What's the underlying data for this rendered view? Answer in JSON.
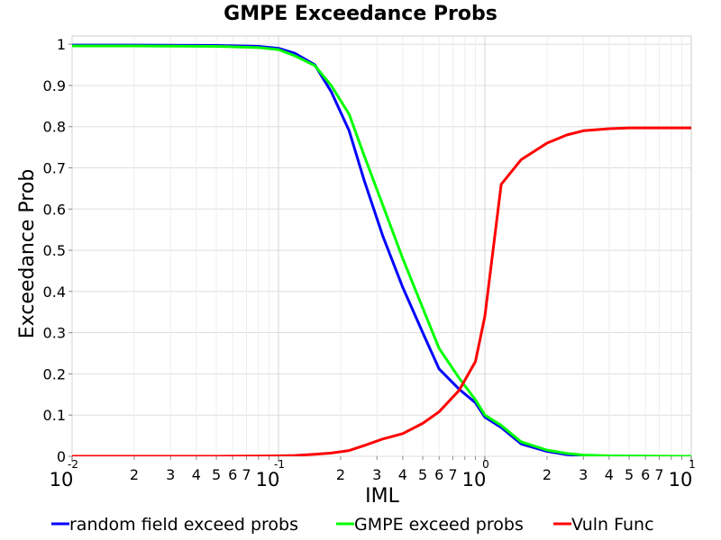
{
  "chart_data": {
    "type": "line",
    "title": "GMPE Exceedance Probs",
    "xlabel": "IML",
    "ylabel": "Exceedance Prob",
    "xscale": "log",
    "xlim": [
      0.01,
      10
    ],
    "ylim": [
      0,
      1.02
    ],
    "grid": true,
    "legend_position": "bottom",
    "y_ticks": [
      "0",
      "0.1",
      "0.2",
      "0.3",
      "0.4",
      "0.5",
      "0.6",
      "0.7",
      "0.8",
      "0.9",
      "1"
    ],
    "x_decade_ticks": [
      {
        "value": 0.01,
        "base": "10",
        "exp": "-2"
      },
      {
        "value": 0.1,
        "base": "10",
        "exp": "-1"
      },
      {
        "value": 1,
        "base": "10",
        "exp": "0"
      },
      {
        "value": 10,
        "base": "10",
        "exp": "1"
      }
    ],
    "x_minor_labels": [
      "2",
      "3",
      "4",
      "5",
      "6",
      "7"
    ],
    "series": [
      {
        "name": "random field exceed probs",
        "color": "#0000ff",
        "x": [
          0.01,
          0.02,
          0.05,
          0.08,
          0.1,
          0.12,
          0.15,
          0.18,
          0.22,
          0.26,
          0.32,
          0.4,
          0.5,
          0.6,
          0.75,
          0.9,
          1.0,
          1.2,
          1.5,
          2.0,
          2.5,
          3.0,
          4.0,
          5.0,
          7.0,
          10.0
        ],
        "values": [
          0.998,
          0.998,
          0.997,
          0.995,
          0.99,
          0.978,
          0.95,
          0.885,
          0.79,
          0.67,
          0.535,
          0.41,
          0.3,
          0.212,
          0.163,
          0.13,
          0.095,
          0.07,
          0.03,
          0.012,
          0.004,
          0.0015,
          0.0005,
          0.0002,
          0.0001,
          0.0001
        ]
      },
      {
        "name": "GMPE exceed probs",
        "color": "#00ff00",
        "x": [
          0.01,
          0.02,
          0.05,
          0.08,
          0.1,
          0.12,
          0.15,
          0.18,
          0.22,
          0.26,
          0.32,
          0.4,
          0.5,
          0.6,
          0.75,
          0.9,
          1.0,
          1.2,
          1.5,
          2.0,
          2.5,
          3.0,
          4.0,
          5.0,
          7.0,
          10.0
        ],
        "values": [
          0.996,
          0.996,
          0.995,
          0.992,
          0.987,
          0.972,
          0.948,
          0.9,
          0.83,
          0.73,
          0.61,
          0.48,
          0.36,
          0.262,
          0.19,
          0.137,
          0.1,
          0.075,
          0.035,
          0.015,
          0.007,
          0.003,
          0.001,
          0.0005,
          0.0002,
          0.0001
        ]
      },
      {
        "name": "Vuln Func",
        "color": "#ff0000",
        "x": [
          0.01,
          0.05,
          0.08,
          0.1,
          0.12,
          0.15,
          0.18,
          0.22,
          0.26,
          0.32,
          0.4,
          0.5,
          0.6,
          0.75,
          0.9,
          1.0,
          1.2,
          1.5,
          2.0,
          2.5,
          3.0,
          4.0,
          5.0,
          7.0,
          10.0
        ],
        "values": [
          0.0,
          0.0,
          0.0005,
          0.001,
          0.002,
          0.005,
          0.008,
          0.014,
          0.026,
          0.042,
          0.055,
          0.08,
          0.108,
          0.16,
          0.23,
          0.34,
          0.66,
          0.72,
          0.76,
          0.78,
          0.79,
          0.795,
          0.797,
          0.797,
          0.797
        ]
      }
    ]
  }
}
